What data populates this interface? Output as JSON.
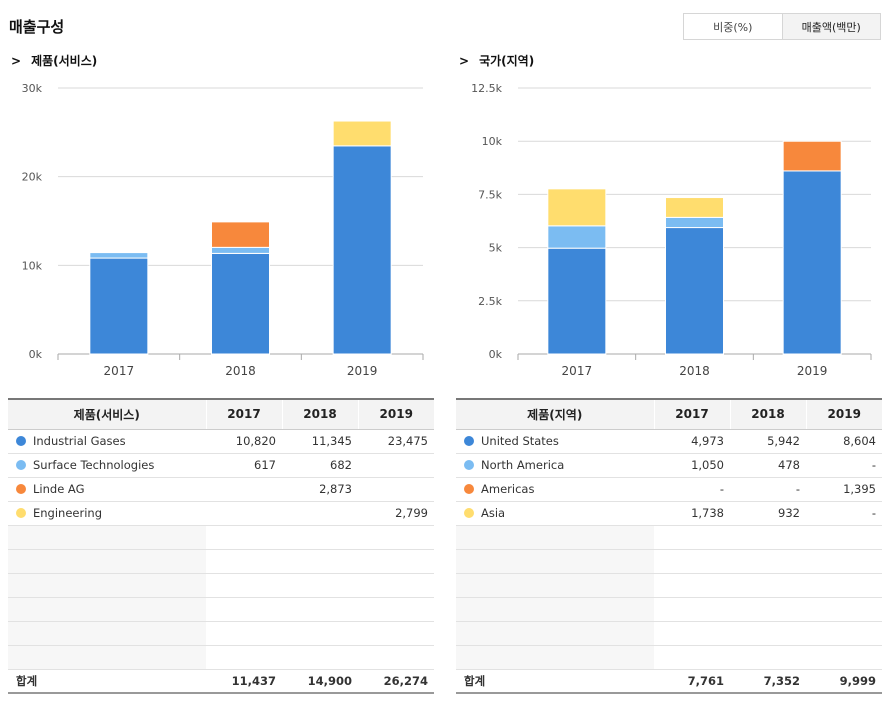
{
  "header": {
    "title": "매출구성",
    "toggle": [
      {
        "label": "비중(%)",
        "active": false
      },
      {
        "label": "매출액(백만)",
        "active": true
      }
    ]
  },
  "chevron": ">",
  "colors": [
    "#3d87d8",
    "#7bbcf2",
    "#f7883c",
    "#ffdd6e"
  ],
  "chart_data": [
    {
      "type": "bar",
      "stacked": true,
      "title": "제품(서비스)",
      "categories": [
        "2017",
        "2018",
        "2019"
      ],
      "ylim": [
        0,
        30000
      ],
      "yticks": [
        0,
        10000,
        20000,
        30000
      ],
      "ytick_labels": [
        "0k",
        "10k",
        "20k",
        "30k"
      ],
      "grid": true,
      "series": [
        {
          "name": "Industrial Gases",
          "values": [
            10820,
            11345,
            23475
          ],
          "display": [
            "10,820",
            "11,345",
            "23,475"
          ]
        },
        {
          "name": "Surface Technologies",
          "values": [
            617,
            682,
            null
          ],
          "display": [
            "617",
            "682",
            ""
          ]
        },
        {
          "name": "Linde AG",
          "values": [
            null,
            2873,
            null
          ],
          "display": [
            "",
            "2,873",
            ""
          ]
        },
        {
          "name": "Engineering",
          "values": [
            null,
            null,
            2799
          ],
          "display": [
            "",
            "",
            "2,799"
          ]
        }
      ],
      "table_header": "제품(서비스)",
      "total_label": "합계",
      "totals": [
        "11,437",
        "14,900",
        "26,274"
      ]
    },
    {
      "type": "bar",
      "stacked": true,
      "title": "국가(지역)",
      "categories": [
        "2017",
        "2018",
        "2019"
      ],
      "ylim": [
        0,
        12500
      ],
      "yticks": [
        0,
        2500,
        5000,
        7500,
        10000,
        12500
      ],
      "ytick_labels": [
        "0k",
        "2.5k",
        "5k",
        "7.5k",
        "10k",
        "12.5k"
      ],
      "grid": true,
      "series": [
        {
          "name": "United States",
          "values": [
            4973,
            5942,
            8604
          ],
          "display": [
            "4,973",
            "5,942",
            "8,604"
          ]
        },
        {
          "name": "North America",
          "values": [
            1050,
            478,
            null
          ],
          "display": [
            "1,050",
            "478",
            "-"
          ]
        },
        {
          "name": "Americas",
          "values": [
            null,
            null,
            1395
          ],
          "display": [
            "-",
            "-",
            "1,395"
          ]
        },
        {
          "name": "Asia",
          "values": [
            1738,
            932,
            null
          ],
          "display": [
            "1,738",
            "932",
            "-"
          ]
        }
      ],
      "table_header": "제품(지역)",
      "total_label": "합계",
      "totals": [
        "7,761",
        "7,352",
        "9,999"
      ]
    }
  ]
}
